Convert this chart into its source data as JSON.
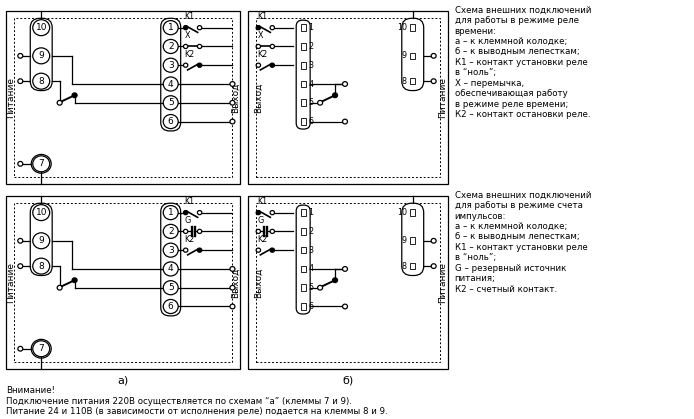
{
  "bg_color": "#ffffff",
  "line_color": "#000000",
  "title_text1": "Схема внешних подключений\nдля работы в режиме реле\nвремени:\nа – к клеммной колодке;\nб – к выводным лепесткам;\nК1 – контакт установки реле\nв “ноль”;\nХ – перемычка,\nобеспечивающая работу\nв режиме реле времени;\nК2 – контакт остановки реле.",
  "title_text2": "Схема внешних подключений\nдля работы в режиме счета\nимпульсов:\nа – к клеммной колодке;\nб – к выводным лепесткам;\nК1 – контакт установки реле\nв “ноль”;\nG – резервный источник\nпитания;\nК2 – счетный контакт.",
  "note_text": "Внимание!\nПодключение питания 220В осуществляется по схемам “а” (клеммы 7 и 9).\nПитание 24 и 110В (в зависимости от исполнения реле) подается на клеммы 8 и 9.",
  "label_a": "а)",
  "label_b": "б)"
}
